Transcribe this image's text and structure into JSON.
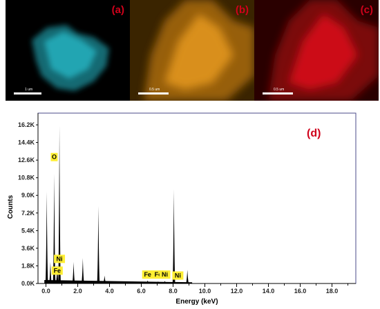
{
  "panels": [
    {
      "label": "(a)",
      "scale": "1 um",
      "color": "#22c4d4"
    },
    {
      "label": "(b)",
      "scale": "0.5 um",
      "color": "#f0a020"
    },
    {
      "label": "(c)",
      "scale": "0.5 um",
      "color": "#e8101a"
    }
  ],
  "chart_data": {
    "type": "line",
    "panel_label": "(d)",
    "xlabel": "Energy (keV)",
    "ylabel": "Counts",
    "xlim": [
      -0.5,
      19.5
    ],
    "ylim": [
      0,
      17400
    ],
    "x_ticks": [
      "0.0",
      "2.0",
      "4.0",
      "6.0",
      "8.0",
      "10.0",
      "12.0",
      "14.0",
      "16.0",
      "18.0"
    ],
    "y_ticks": [
      "0.0K",
      "1.8K",
      "3.6K",
      "5.4K",
      "7.2K",
      "9.0K",
      "10.8K",
      "12.6K",
      "14.4K",
      "16.2K"
    ],
    "grid": false,
    "series": [
      {
        "values": [
          {
            "x": 0.05,
            "y": 9400
          },
          {
            "x": 0.28,
            "y": 2200
          },
          {
            "x": 0.52,
            "y": 11200
          },
          {
            "x": 0.71,
            "y": 2000
          },
          {
            "x": 0.85,
            "y": 16100
          },
          {
            "x": 1.74,
            "y": 2200
          },
          {
            "x": 2.32,
            "y": 2600
          },
          {
            "x": 3.3,
            "y": 7900
          },
          {
            "x": 3.69,
            "y": 800
          },
          {
            "x": 6.4,
            "y": 300
          },
          {
            "x": 7.06,
            "y": 200
          },
          {
            "x": 7.48,
            "y": 250
          },
          {
            "x": 8.05,
            "y": 9600
          },
          {
            "x": 8.9,
            "y": 1400
          }
        ]
      }
    ],
    "element_labels": [
      {
        "text": "O",
        "x": 0.52,
        "y": 12700
      },
      {
        "text": "Ni",
        "x": 0.85,
        "y": 2300
      },
      {
        "text": "Fe",
        "x": 0.71,
        "y": 1100
      },
      {
        "text": "Fe",
        "x": 6.4,
        "y": 700
      },
      {
        "text": "Fe",
        "x": 7.06,
        "y": 700
      },
      {
        "text": "Ni",
        "x": 7.48,
        "y": 700
      },
      {
        "text": "Ni",
        "x": 8.3,
        "y": 600
      }
    ]
  }
}
